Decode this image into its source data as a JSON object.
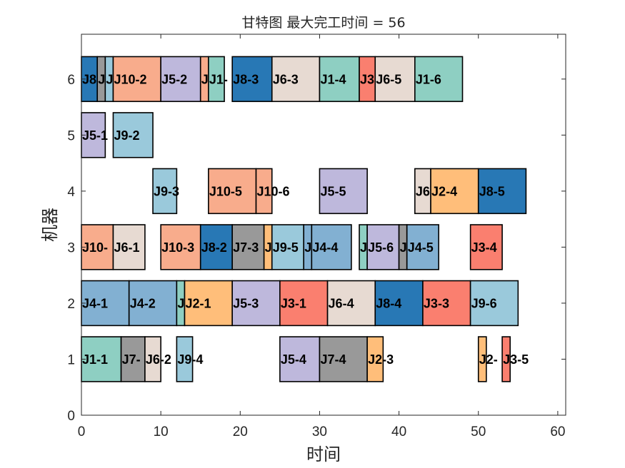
{
  "chart_data": {
    "type": "gantt",
    "title": "甘特图 最大完工时间 = 56",
    "xlabel": "时间",
    "ylabel": "机器",
    "xlim": [
      0,
      61
    ],
    "ylim": [
      0,
      6.8
    ],
    "xticks": [
      "0",
      "10",
      "20",
      "30",
      "40",
      "50",
      "60"
    ],
    "yticks": [
      "0",
      "1",
      "2",
      "3",
      "4",
      "5",
      "6"
    ],
    "grid": false,
    "job_colors": {
      "J1": "#8ECFC2",
      "J2": "#FFBE7A",
      "J3": "#FA7F6F",
      "J4": "#82B0D2",
      "J5": "#BEB8DC",
      "J6": "#E7DAD2",
      "J7": "#999999",
      "J8": "#2878B5",
      "J9": "#9AC9DB",
      "J10": "#F8AC8C"
    },
    "tasks": [
      {
        "machine": 1,
        "job": "J1",
        "label": "J1-1",
        "start": 0,
        "end": 5
      },
      {
        "machine": 1,
        "job": "J7",
        "label": "J7-",
        "start": 5,
        "end": 8
      },
      {
        "machine": 1,
        "job": "J6",
        "label": "J6-2",
        "start": 8,
        "end": 10
      },
      {
        "machine": 1,
        "job": "J9",
        "label": "J9-4",
        "start": 12,
        "end": 14
      },
      {
        "machine": 1,
        "job": "J5",
        "label": "J5-4",
        "start": 25,
        "end": 30
      },
      {
        "machine": 1,
        "job": "J7",
        "label": "J7-4",
        "start": 30,
        "end": 36
      },
      {
        "machine": 1,
        "job": "J2",
        "label": "J2-3",
        "start": 36,
        "end": 38
      },
      {
        "machine": 1,
        "job": "J2",
        "label": "J2-",
        "start": 50,
        "end": 51
      },
      {
        "machine": 1,
        "job": "J3",
        "label": "J3-5",
        "start": 53,
        "end": 54
      },
      {
        "machine": 2,
        "job": "J4",
        "label": "J4-1",
        "start": 0,
        "end": 6
      },
      {
        "machine": 2,
        "job": "J4",
        "label": "J4-2",
        "start": 6,
        "end": 12
      },
      {
        "machine": 2,
        "job": "J1",
        "label": "J",
        "start": 12,
        "end": 13
      },
      {
        "machine": 2,
        "job": "J2",
        "label": "J2-1",
        "start": 13,
        "end": 19
      },
      {
        "machine": 2,
        "job": "J5",
        "label": "J5-3",
        "start": 19,
        "end": 25
      },
      {
        "machine": 2,
        "job": "J3",
        "label": "J3-1",
        "start": 25,
        "end": 31
      },
      {
        "machine": 2,
        "job": "J6",
        "label": "J6-4",
        "start": 31,
        "end": 37
      },
      {
        "machine": 2,
        "job": "J8",
        "label": "J8-4",
        "start": 37,
        "end": 43
      },
      {
        "machine": 2,
        "job": "J3",
        "label": "J3-3",
        "start": 43,
        "end": 49
      },
      {
        "machine": 2,
        "job": "J9",
        "label": "J9-6",
        "start": 49,
        "end": 55
      },
      {
        "machine": 3,
        "job": "J10",
        "label": "J10-",
        "start": 0,
        "end": 4
      },
      {
        "machine": 3,
        "job": "J6",
        "label": "J6-1",
        "start": 4,
        "end": 8
      },
      {
        "machine": 3,
        "job": "J10",
        "label": "J10-3",
        "start": 10,
        "end": 15
      },
      {
        "machine": 3,
        "job": "J8",
        "label": "J8-2",
        "start": 15,
        "end": 19
      },
      {
        "machine": 3,
        "job": "J7",
        "label": "J7-3",
        "start": 19,
        "end": 23
      },
      {
        "machine": 3,
        "job": "J2",
        "label": "J",
        "start": 23,
        "end": 24
      },
      {
        "machine": 3,
        "job": "J9",
        "label": "J9-5",
        "start": 24,
        "end": 28
      },
      {
        "machine": 3,
        "job": "J4",
        "label": "J",
        "start": 28,
        "end": 29
      },
      {
        "machine": 3,
        "job": "J4",
        "label": "J4-4",
        "start": 29,
        "end": 34
      },
      {
        "machine": 3,
        "job": "J1",
        "label": "J",
        "start": 35,
        "end": 36
      },
      {
        "machine": 3,
        "job": "J5",
        "label": "J5-6",
        "start": 36,
        "end": 40
      },
      {
        "machine": 3,
        "job": "J7",
        "label": "J",
        "start": 40,
        "end": 41
      },
      {
        "machine": 3,
        "job": "J4",
        "label": "J4-5",
        "start": 41,
        "end": 45
      },
      {
        "machine": 3,
        "job": "J3",
        "label": "J3-4",
        "start": 49,
        "end": 53
      },
      {
        "machine": 4,
        "job": "J9",
        "label": "J9-3",
        "start": 9,
        "end": 12
      },
      {
        "machine": 4,
        "job": "J10",
        "label": "J10-5",
        "start": 16,
        "end": 22
      },
      {
        "machine": 4,
        "job": "J10",
        "label": "J10-6",
        "start": 22,
        "end": 24
      },
      {
        "machine": 4,
        "job": "J5",
        "label": "J5-5",
        "start": 30,
        "end": 36
      },
      {
        "machine": 4,
        "job": "J6",
        "label": "J6",
        "start": 42,
        "end": 44
      },
      {
        "machine": 4,
        "job": "J2",
        "label": "J2-4",
        "start": 44,
        "end": 50
      },
      {
        "machine": 4,
        "job": "J8",
        "label": "J8-5",
        "start": 50,
        "end": 56
      },
      {
        "machine": 5,
        "job": "J5",
        "label": "J5-1",
        "start": 0,
        "end": 3
      },
      {
        "machine": 5,
        "job": "J9",
        "label": "J9-2",
        "start": 4,
        "end": 9
      },
      {
        "machine": 6,
        "job": "J8",
        "label": "J8",
        "start": 0,
        "end": 2
      },
      {
        "machine": 6,
        "job": "J7",
        "label": "J",
        "start": 2,
        "end": 3
      },
      {
        "machine": 6,
        "job": "J9",
        "label": "J",
        "start": 3,
        "end": 4
      },
      {
        "machine": 6,
        "job": "J10",
        "label": "J10-2",
        "start": 4,
        "end": 10
      },
      {
        "machine": 6,
        "job": "J5",
        "label": "J5-2",
        "start": 10,
        "end": 15
      },
      {
        "machine": 6,
        "job": "J10",
        "label": "J",
        "start": 15,
        "end": 16
      },
      {
        "machine": 6,
        "job": "J1",
        "label": "J1-",
        "start": 16,
        "end": 18
      },
      {
        "machine": 6,
        "job": "J8",
        "label": "J8-3",
        "start": 19,
        "end": 24
      },
      {
        "machine": 6,
        "job": "J6",
        "label": "J6-3",
        "start": 24,
        "end": 30
      },
      {
        "machine": 6,
        "job": "J1",
        "label": "J1-4",
        "start": 30,
        "end": 35
      },
      {
        "machine": 6,
        "job": "J3",
        "label": "J3",
        "start": 35,
        "end": 37
      },
      {
        "machine": 6,
        "job": "J6",
        "label": "J6-5",
        "start": 37,
        "end": 42
      },
      {
        "machine": 6,
        "job": "J1",
        "label": "J1-6",
        "start": 42,
        "end": 48
      }
    ]
  }
}
